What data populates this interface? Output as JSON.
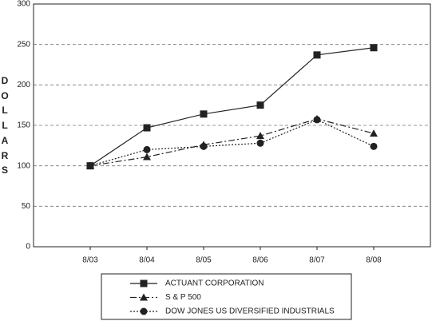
{
  "chart_data": {
    "type": "line",
    "y_label": "DOLLARS",
    "categories": [
      "8/03",
      "8/04",
      "8/05",
      "8/06",
      "8/07",
      "8/08"
    ],
    "series": [
      {
        "name": "ACTUANT CORPORATION",
        "color": "#222222",
        "dash": "solid",
        "marker": "square",
        "values": [
          100,
          147,
          164,
          175,
          237,
          246
        ]
      },
      {
        "name": "S & P 500",
        "color": "#222222",
        "dash": "dashdot",
        "marker": "triangle",
        "values": [
          100,
          111,
          126,
          137,
          158,
          140
        ]
      },
      {
        "name": "DOW JONES US DIVERSIFIED INDUSTRIALS",
        "color": "#222222",
        "dash": "dotted",
        "marker": "circle",
        "values": [
          100,
          120,
          124,
          128,
          157,
          124
        ]
      }
    ],
    "ylim": [
      0,
      300
    ],
    "yticks": [
      0,
      50,
      100,
      150,
      200,
      250,
      300
    ],
    "grid": true
  }
}
